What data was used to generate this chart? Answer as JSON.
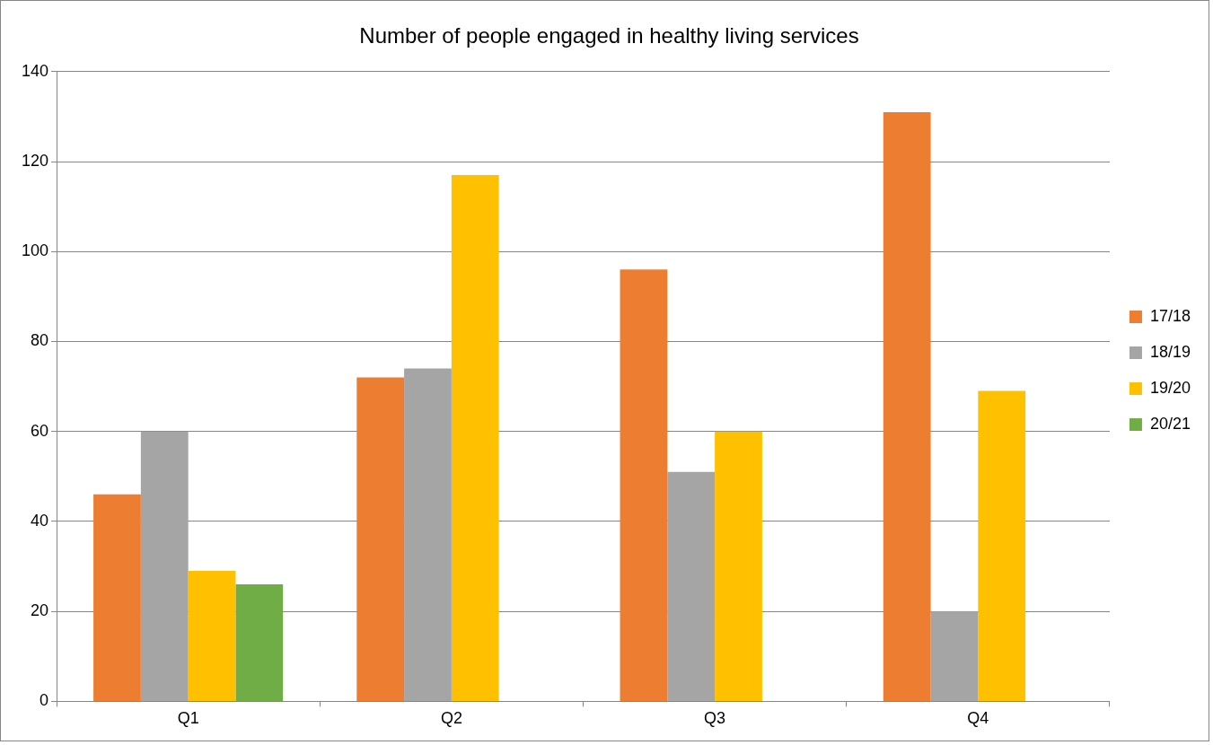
{
  "chart_data": {
    "type": "bar",
    "title": "Number of people engaged in healthy living services",
    "categories": [
      "Q1",
      "Q2",
      "Q3",
      "Q4"
    ],
    "series": [
      {
        "name": "17/18",
        "color": "#ed7d31",
        "values": [
          46,
          72,
          96,
          131
        ]
      },
      {
        "name": "18/19",
        "color": "#a5a5a5",
        "values": [
          60,
          74,
          51,
          20
        ]
      },
      {
        "name": "19/20",
        "color": "#ffc000",
        "values": [
          29,
          117,
          60,
          69
        ]
      },
      {
        "name": "20/21",
        "color": "#70ad47",
        "values": [
          26,
          null,
          null,
          null
        ]
      }
    ],
    "ylim": [
      0,
      140
    ],
    "yticks": [
      0,
      20,
      40,
      60,
      80,
      100,
      120,
      140
    ],
    "grid": "y",
    "legend": "right"
  }
}
